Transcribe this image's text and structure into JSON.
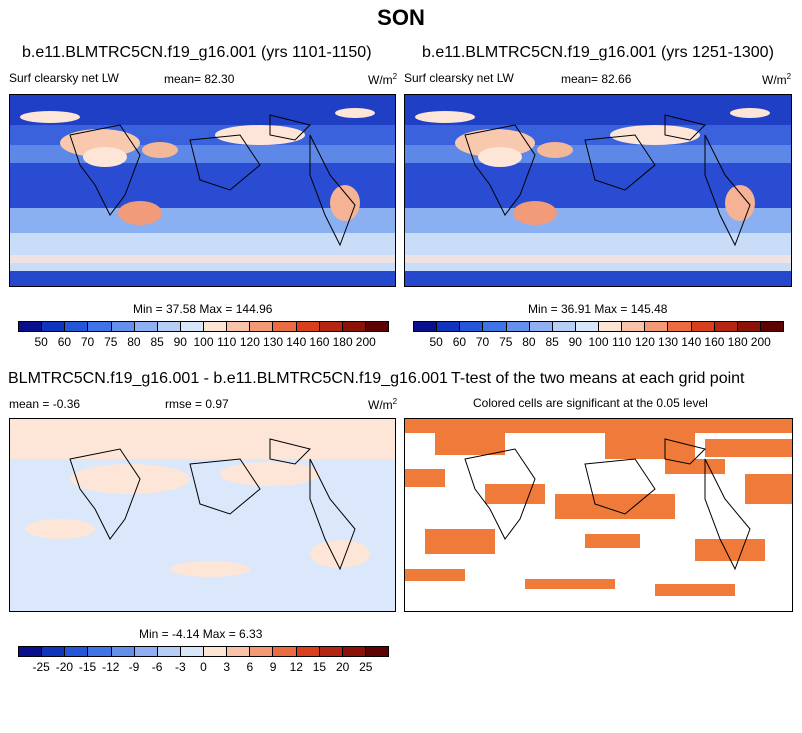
{
  "season": "SON",
  "panel_tl": {
    "title": "b.e11.BLMTRC5CN.f19_g16.001 (yrs 1101-1150)",
    "variable": "Surf clearsky net LW",
    "mean": "mean=  82.30",
    "units": "W/m",
    "units_sup": "2",
    "minmax": "Min = 37.58 Max = 144.96"
  },
  "panel_tr": {
    "title": "b.e11.BLMTRC5CN.f19_g16.001 (yrs 1251-1300)",
    "variable": "Surf clearsky net LW",
    "mean": "mean=  82.66",
    "units": "W/m",
    "units_sup": "2",
    "minmax": "Min = 36.91 Max = 145.48"
  },
  "panel_bl": {
    "title": "BLMTRC5CN.f19_g16.001 - b.e11.BLMTRC5CN.f19_g16.001",
    "mean": "mean =  -0.36",
    "rmse": "rmse =  0.97",
    "units": "W/m",
    "units_sup": "2",
    "minmax": "Min =  -4.14 Max =   6.33"
  },
  "panel_br": {
    "title": "T-test of the two means at each grid point",
    "subtitle": "Colored cells are significant at the 0.05 level"
  },
  "colorbar_abs": {
    "labels": [
      "50",
      "60",
      "70",
      "75",
      "80",
      "85",
      "90",
      "100",
      "110",
      "120",
      "130",
      "140",
      "160",
      "180",
      "200"
    ],
    "colors": [
      "#08108c",
      "#1034bb",
      "#2456d8",
      "#3f74e6",
      "#6490ec",
      "#8eb0f2",
      "#b6cef6",
      "#d8e6fa",
      "#fde5d6",
      "#f8c3a8",
      "#f39a75",
      "#ec6c42",
      "#d8401d",
      "#b42512",
      "#8a1207",
      "#5e0202"
    ]
  },
  "colorbar_diff": {
    "labels": [
      "-25",
      "-20",
      "-15",
      "-12",
      "-9",
      "-6",
      "-3",
      "0",
      "3",
      "6",
      "9",
      "12",
      "15",
      "20",
      "25"
    ],
    "colors": [
      "#08108c",
      "#1034bb",
      "#2456d8",
      "#3f74e6",
      "#6490ec",
      "#8eb0f2",
      "#b6cef6",
      "#d8e6fa",
      "#fde5d6",
      "#f8c3a8",
      "#f39a75",
      "#ec6c42",
      "#d8401d",
      "#b42512",
      "#8a1207",
      "#5e0202"
    ]
  }
}
